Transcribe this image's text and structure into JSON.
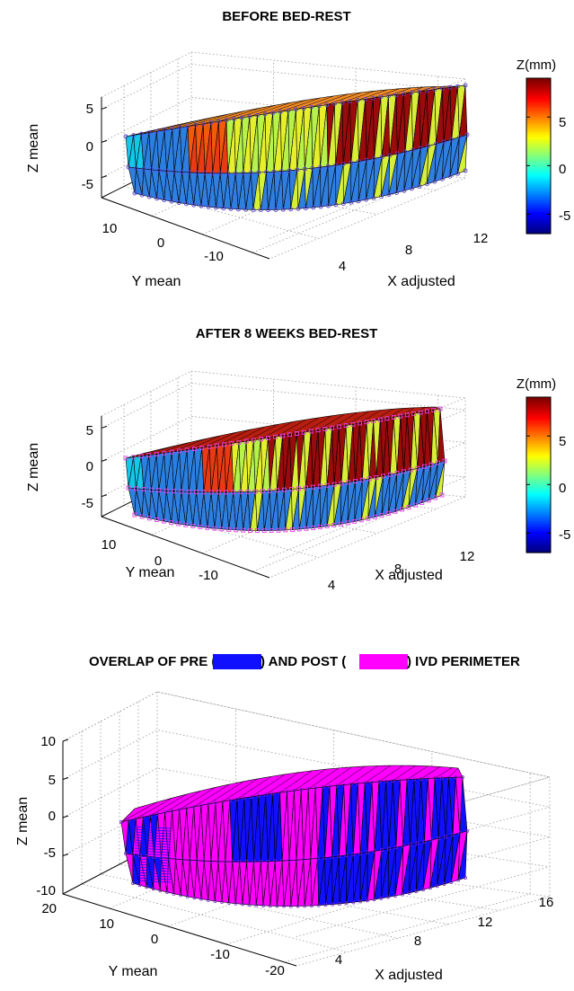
{
  "chart_data": [
    {
      "type": "surface3d",
      "title": "BEFORE BED-REST",
      "xlabel": "X adjusted",
      "ylabel": "Y mean",
      "zlabel": "Z mean",
      "x_ticks": [
        "4",
        "8",
        "12"
      ],
      "y_ticks": [
        "10",
        "0",
        "-10"
      ],
      "z_ticks": [
        "5",
        "0",
        "-5"
      ],
      "colorbar": {
        "label": "Z(mm)",
        "ticks": [
          "5",
          "0",
          "-5"
        ],
        "range": [
          -7,
          9
        ],
        "colormap": "jet"
      },
      "surface": {
        "top_z": 7,
        "bottom_z": -6,
        "marker_color": "#5a3fd6"
      }
    },
    {
      "type": "surface3d",
      "title": "AFTER 8 WEEKS BED-REST",
      "xlabel": "X adjusted",
      "ylabel": "Y mean",
      "zlabel": "Z mean",
      "x_ticks": [
        "4",
        "8",
        "12"
      ],
      "y_ticks": [
        "10",
        "0",
        "-10"
      ],
      "z_ticks": [
        "5",
        "0",
        "-5"
      ],
      "colorbar": {
        "label": "Z(mm)",
        "ticks": [
          "5",
          "0",
          "-5"
        ],
        "range": [
          -7,
          9
        ],
        "colormap": "jet"
      },
      "surface": {
        "top_z": 7,
        "bottom_z": -6,
        "marker_color": "#e23fe8"
      }
    },
    {
      "type": "surface3d",
      "title_parts": [
        "OVERLAP OF PRE (",
        ") AND POST (",
        ") IVD PERIMETER"
      ],
      "legend": [
        {
          "name": "PRE",
          "color": "#1010ff"
        },
        {
          "name": "POST",
          "color": "#ff00ff"
        }
      ],
      "xlabel": "X adjusted",
      "ylabel": "Y mean",
      "zlabel": "Z mean",
      "x_ticks": [
        "4",
        "8",
        "12",
        "16"
      ],
      "y_ticks": [
        "20",
        "10",
        "0",
        "-10",
        "-20"
      ],
      "z_ticks": [
        "10",
        "5",
        "0",
        "-5",
        "-10"
      ]
    }
  ]
}
